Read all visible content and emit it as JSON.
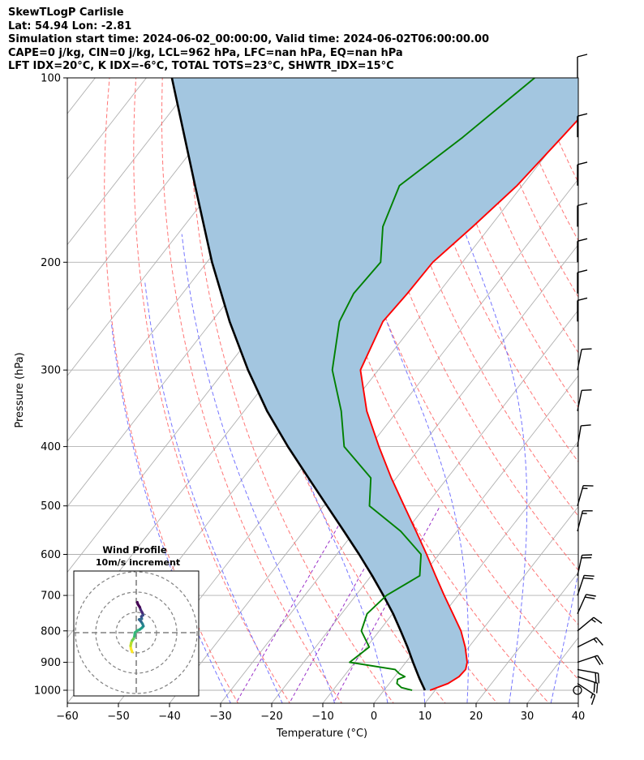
{
  "header": {
    "line1": "SkewTLogP Carlisle",
    "line2": "Lat: 54.94   Lon: -2.81",
    "line3": "Simulation start time: 2024-06-02_00:00:00, Valid time: 2024-06-02T06:00:00.00",
    "line4": "CAPE=0 j/kg, CIN=0 j/kg, LCL=962 hPa, LFC=nan hPa, EQ=nan hPa",
    "line5": "LFT IDX=20°C, K IDX=-6°C, TOTAL TOTS=23°C, SHWTR_IDX=15°C"
  },
  "chart_data": {
    "type": "skewt",
    "xlabel": "Temperature (°C)",
    "ylabel": "Pressure (hPa)",
    "xlim": [
      -60,
      40
    ],
    "ylim": [
      1050,
      100
    ],
    "x_ticks": [
      -60,
      -50,
      -40,
      -30,
      -20,
      -10,
      0,
      10,
      20,
      30,
      40
    ],
    "x_tick_labels": [
      "−60",
      "−50",
      "−40",
      "−30",
      "−20",
      "−10",
      "0",
      "10",
      "20",
      "30",
      "40"
    ],
    "y_ticks": [
      1000,
      900,
      800,
      700,
      600,
      500,
      400,
      300,
      200,
      100
    ],
    "y_tick_labels": [
      "1000",
      "900",
      "800",
      "700",
      "600",
      "500",
      "400",
      "300",
      "200",
      "100"
    ],
    "grid": true,
    "colors": {
      "temperature": "#ff0000",
      "dewpoint": "#008000",
      "parcel": "#000000",
      "shading": "#a3c6e0",
      "dry_adiabats": "#ff6666",
      "moist_adiabats": "#6666ff",
      "mixing_ratio": "#9a30c8",
      "isotherms": "#b0b0b0"
    },
    "temperature": {
      "pressure": [
        1000,
        975,
        950,
        925,
        900,
        850,
        800,
        750,
        700,
        650,
        600,
        550,
        500,
        450,
        400,
        350,
        300,
        250,
        225,
        200,
        175,
        150,
        125,
        100
      ],
      "values": [
        9.0,
        11.5,
        12.6,
        12.8,
        12.0,
        9.3,
        6.0,
        1.8,
        -2.7,
        -7.4,
        -12.4,
        -18.0,
        -24.2,
        -31.0,
        -38.2,
        -46.0,
        -53.5,
        -56.5,
        -56.0,
        -55.8,
        -53.4,
        -51.0,
        -49.6,
        -48.0
      ]
    },
    "dewpoint": {
      "pressure": [
        1000,
        990,
        975,
        960,
        950,
        940,
        925,
        900,
        850,
        800,
        750,
        700,
        650,
        600,
        550,
        500,
        450,
        400,
        350,
        300,
        250,
        225,
        200,
        175,
        150,
        125,
        100
      ],
      "values": [
        5.5,
        3.0,
        1.5,
        1.0,
        2.0,
        0.5,
        -1.0,
        -11.0,
        -9.5,
        -13.5,
        -15.0,
        -14.0,
        -10.5,
        -13.5,
        -21.0,
        -31.0,
        -35.0,
        -45.0,
        -51.0,
        -59.0,
        -65.0,
        -66.5,
        -66.0,
        -71.0,
        -74.0,
        -69.0,
        -64.0
      ]
    },
    "parcel": {
      "pressure": [
        1000,
        962,
        950,
        900,
        850,
        800,
        750,
        700,
        650,
        600,
        550,
        500,
        450,
        400,
        350,
        300,
        250,
        200,
        150,
        100
      ],
      "values": [
        8.0,
        5.5,
        4.7,
        1.4,
        -2.0,
        -5.8,
        -9.9,
        -14.6,
        -19.8,
        -25.6,
        -32.1,
        -39.3,
        -47.2,
        -56.0,
        -65.5,
        -75.5,
        -86.5,
        -99.0,
        -114.0,
        -135.0
      ]
    },
    "wind_barbs": [
      {
        "pressure": 1000,
        "u": 0,
        "v": 0
      },
      {
        "pressure": 975,
        "u": -6,
        "v": 4
      },
      {
        "pressure": 950,
        "u": -9,
        "v": 3
      },
      {
        "pressure": 925,
        "u": -11,
        "v": 2
      },
      {
        "pressure": 900,
        "u": -9,
        "v": -3
      },
      {
        "pressure": 850,
        "u": -8,
        "v": -4
      },
      {
        "pressure": 800,
        "u": -6,
        "v": -5
      },
      {
        "pressure": 750,
        "u": -4,
        "v": -9
      },
      {
        "pressure": 700,
        "u": -3,
        "v": -9
      },
      {
        "pressure": 650,
        "u": -2,
        "v": -9
      },
      {
        "pressure": 550,
        "u": -2,
        "v": -8
      },
      {
        "pressure": 500,
        "u": -2,
        "v": -7
      },
      {
        "pressure": 400,
        "u": -1,
        "v": -6
      },
      {
        "pressure": 350,
        "u": -1,
        "v": -5
      },
      {
        "pressure": 300,
        "u": -1,
        "v": -5
      },
      {
        "pressure": 250,
        "u": 0,
        "v": -5
      },
      {
        "pressure": 225,
        "u": 0,
        "v": -5
      },
      {
        "pressure": 200,
        "u": 0,
        "v": -5
      },
      {
        "pressure": 175,
        "u": 0,
        "v": -5
      },
      {
        "pressure": 150,
        "u": 0,
        "v": -5
      },
      {
        "pressure": 125,
        "u": 0,
        "v": -5
      },
      {
        "pressure": 100,
        "u": 0,
        "v": -5
      }
    ],
    "hodograph": {
      "title": "Wind Profile",
      "subtitle": "10m/s increment",
      "rings": [
        10,
        20,
        30
      ],
      "u": [
        -2.0,
        -2.6,
        -2.8,
        -2.5,
        -2.0,
        -1.3,
        -0.9,
        -0.7,
        0.5,
        1.8,
        2.8,
        3.5,
        3.1,
        2.4,
        1.4,
        2.7,
        2.5,
        3.3,
        3.0,
        2.2,
        1.7,
        0.8,
        0.5
      ],
      "v": [
        -9.5,
        -8.0,
        -6.5,
        -5.0,
        -3.8,
        -3.0,
        -1.8,
        0.0,
        1.0,
        1.6,
        2.4,
        3.2,
        4.3,
        5.4,
        6.5,
        6.8,
        8.0,
        8.6,
        9.8,
        11.2,
        12.6,
        14.0,
        15.0
      ],
      "colormap": "viridis"
    }
  }
}
